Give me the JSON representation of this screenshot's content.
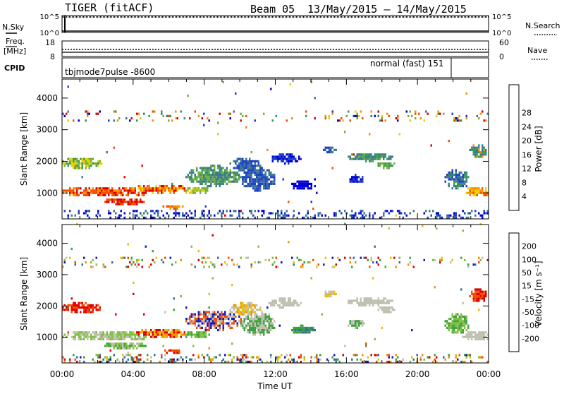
{
  "header": {
    "radar": "TIGER (fitACF)",
    "beam": "Beam 05",
    "date_range": "13/May/2015 – 14/May/2015"
  },
  "top_panels": {
    "nsky_label": "N.Sky",
    "nsky_ticks": [
      "10^5",
      "10^0"
    ],
    "nsearch_label": "N.Search",
    "nsearch_ticks": [
      "10^5",
      "10^0"
    ],
    "freq_label_1": "Freq.",
    "freq_label_2": "[MHz]",
    "freq_ticks": [
      "18",
      "8"
    ],
    "nave_label": "Nave",
    "nave_ticks": [
      "60",
      "0"
    ],
    "cpid_label": "CPID",
    "cpid_left": "tbjmode7pulse -8600",
    "cpid_right": "normal (fast) 151"
  },
  "colors": {
    "power": [
      "#0000d8",
      "#2040c8",
      "#3c7890",
      "#3a9860",
      "#70b040",
      "#e8d000",
      "#f89000",
      "#f05000",
      "#e00000"
    ],
    "velocity": [
      "#e00000",
      "#f05000",
      "#f89000",
      "#e8c000",
      "#c0c0b0",
      "#80c040",
      "#40a040",
      "#3070a0",
      "#1818c0"
    ]
  },
  "chart_data": [
    {
      "type": "heatmap",
      "name": "power",
      "xlabel": "",
      "ylabel": "Slant Range [km]",
      "x_range": [
        0,
        24
      ],
      "y_range": [
        180,
        4600
      ],
      "yticks": [
        1000,
        2000,
        3000,
        4000
      ],
      "ytick_labels": [
        "1000",
        "2000",
        "3000",
        "4000"
      ],
      "colorbar_label": "Power [dB]",
      "colorbar_range": [
        0,
        32
      ],
      "colorbar_ticks": [
        "4",
        "8",
        "12",
        "16",
        "20",
        "24",
        "28"
      ]
    },
    {
      "type": "heatmap",
      "name": "velocity",
      "xlabel": "Time UT",
      "ylabel": "Slant Range [km]",
      "x_range": [
        0,
        24
      ],
      "y_range": [
        180,
        4600
      ],
      "xtick_labels": [
        "00:00",
        "04:00",
        "08:00",
        "12:00",
        "16:00",
        "20:00",
        "00:00"
      ],
      "yticks": [
        1000,
        2000,
        3000,
        4000
      ],
      "ytick_labels": [
        "1000",
        "2000",
        "3000",
        "4000"
      ],
      "colorbar_label": "Velocity [m s⁻¹]",
      "colorbar_range": [
        -250,
        250
      ],
      "colorbar_ticks": [
        "200",
        "100",
        "50",
        "15",
        "-15",
        "-50",
        "-100",
        "-200"
      ]
    }
  ]
}
